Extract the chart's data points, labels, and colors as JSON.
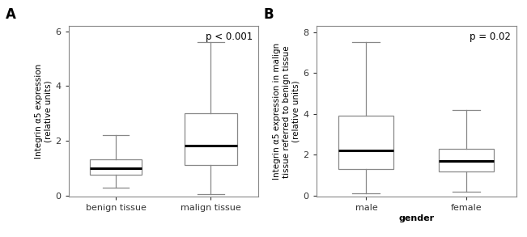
{
  "panel_A": {
    "title": "A",
    "ylabel": "Integrin α5 expression\n(relative units)",
    "xlabel": "",
    "categories": [
      "benign tissue",
      "malign tissue"
    ],
    "boxes": [
      {
        "whislo": 0.28,
        "q1": 0.75,
        "med": 1.0,
        "q3": 1.32,
        "whishi": 2.2
      },
      {
        "whislo": 0.05,
        "q1": 1.1,
        "med": 1.82,
        "q3": 3.0,
        "whishi": 5.6
      }
    ],
    "ylim": [
      -0.05,
      6.2
    ],
    "yticks": [
      0,
      2,
      4,
      6
    ],
    "pvalue": "p < 0.001"
  },
  "panel_B": {
    "title": "B",
    "ylabel": "Integrin α5 expression in malign\ntissue referred to benign tissue\n(relative units)",
    "xlabel": "gender",
    "categories": [
      "male",
      "female"
    ],
    "boxes": [
      {
        "whislo": 0.1,
        "q1": 1.3,
        "med": 2.2,
        "q3": 3.9,
        "whishi": 7.5
      },
      {
        "whislo": 0.2,
        "q1": 1.2,
        "med": 1.7,
        "q3": 2.3,
        "whishi": 4.2
      }
    ],
    "ylim": [
      -0.05,
      8.3
    ],
    "yticks": [
      0,
      2,
      4,
      6,
      8
    ],
    "pvalue": "p = 0.02"
  },
  "box_color": "#ffffff",
  "box_edge_color": "#888888",
  "median_color": "#000000",
  "whisker_color": "#888888",
  "cap_color": "#888888",
  "background_color": "#ffffff",
  "label_fontsize": 7.5,
  "title_fontsize": 12,
  "tick_fontsize": 8,
  "pvalue_fontsize": 8.5,
  "box_width": 0.55
}
